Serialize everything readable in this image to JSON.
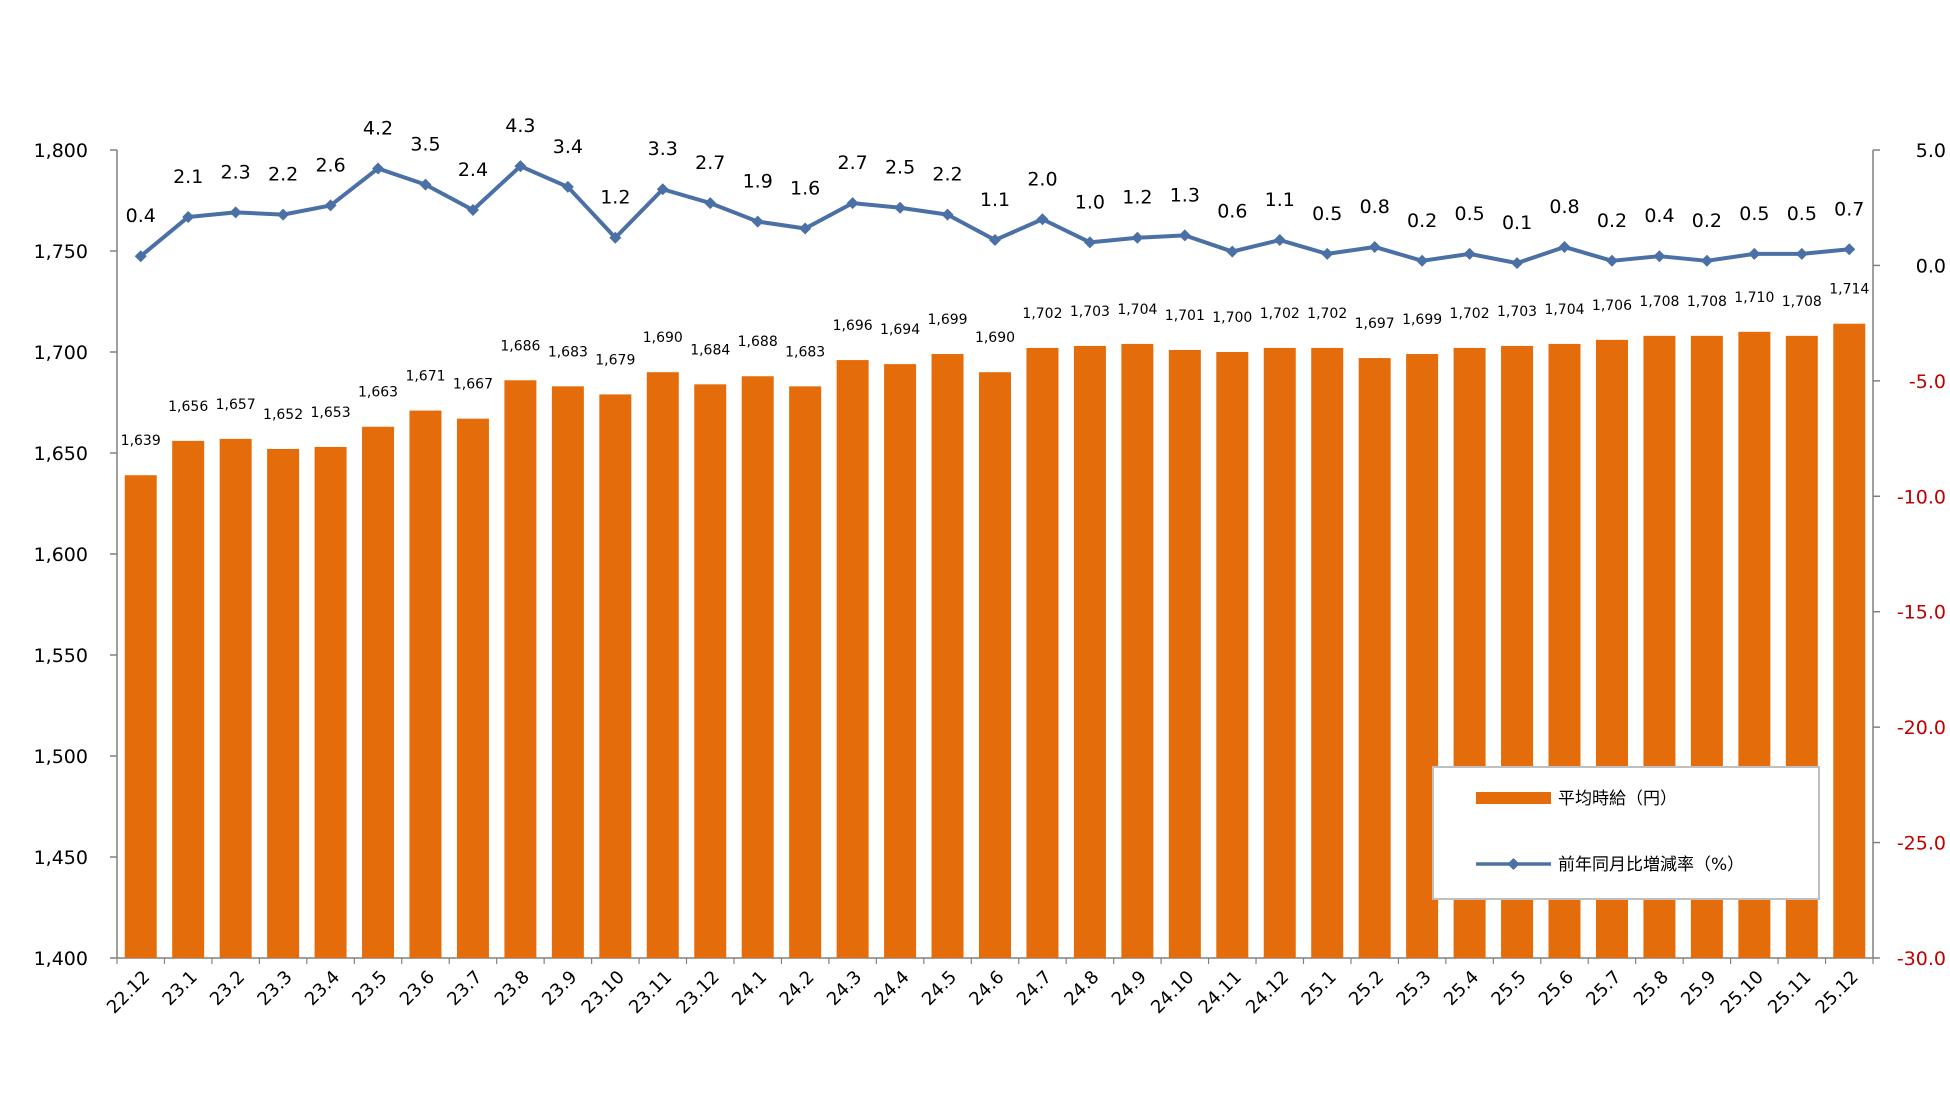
{
  "colors": {
    "bar": "#E46C0A",
    "line": "#4A70A6",
    "axis": "#808080",
    "negative_tick": "#C00000",
    "legend_border": "#BFBFBF"
  },
  "legend": {
    "bar_label": "平均時給（円）",
    "line_label": "前年同月比増減率（%）",
    "placement": "bottom-right"
  },
  "chart_data": {
    "type": "bar",
    "title": "",
    "xlabel": "",
    "ylabel": "",
    "ylim": [
      1400,
      1800
    ],
    "y2lim": [
      -30,
      5
    ],
    "y_ticks": [
      "1,400",
      "1,450",
      "1,500",
      "1,550",
      "1,600",
      "1,650",
      "1,700",
      "1,750",
      "1,800"
    ],
    "y2_ticks": [
      "-30.0",
      "-25.0",
      "-20.0",
      "-15.0",
      "-10.0",
      "-5.0",
      "0.0",
      "5.0"
    ],
    "grid": false,
    "categories": [
      "22.12",
      "23.1",
      "23.2",
      "23.3",
      "23.4",
      "23.5",
      "23.6",
      "23.7",
      "23.8",
      "23.9",
      "23.10",
      "23.11",
      "23.12",
      "24.1",
      "24.2",
      "24.3",
      "24.4",
      "24.5",
      "24.6",
      "24.7",
      "24.8",
      "24.9",
      "24.10",
      "24.11",
      "24.12",
      "25.1",
      "25.2",
      "25.3",
      "25.4",
      "25.5",
      "25.6",
      "25.7",
      "25.8",
      "25.9",
      "25.10",
      "25.11",
      "25.12"
    ],
    "series": [
      {
        "name": "平均時給（円）",
        "type": "bar",
        "axis": "left",
        "values": [
          1639,
          1656,
          1657,
          1652,
          1653,
          1663,
          1671,
          1667,
          1686,
          1683,
          1679,
          1690,
          1684,
          1688,
          1683,
          1696,
          1694,
          1699,
          1690,
          1702,
          1703,
          1704,
          1701,
          1700,
          1702,
          1702,
          1697,
          1699,
          1702,
          1703,
          1704,
          1706,
          1708,
          1708,
          1710,
          1708,
          1714
        ],
        "labels": [
          "1,639",
          "1,656",
          "1,657",
          "1,652",
          "1,653",
          "1,663",
          "1,671",
          "1,667",
          "1,686",
          "1,683",
          "1,679",
          "1,690",
          "1,684",
          "1,688",
          "1,683",
          "1,696",
          "1,694",
          "1,699",
          "1,690",
          "1,702",
          "1,703",
          "1,704",
          "1,701",
          "1,700",
          "1,702",
          "1,702",
          "1,697",
          "1,699",
          "1,702",
          "1,703",
          "1,704",
          "1,706",
          "1,708",
          "1,708",
          "1,710",
          "1,708",
          "1,714"
        ]
      },
      {
        "name": "前年同月比増減率（%）",
        "type": "line",
        "axis": "right",
        "values": [
          0.4,
          2.1,
          2.3,
          2.2,
          2.6,
          4.2,
          3.5,
          2.4,
          4.3,
          3.4,
          1.2,
          3.3,
          2.7,
          1.9,
          1.6,
          2.7,
          2.5,
          2.2,
          1.1,
          2.0,
          1.0,
          1.2,
          1.3,
          0.6,
          1.1,
          0.5,
          0.8,
          0.2,
          0.5,
          0.1,
          0.8,
          0.2,
          0.4,
          0.2,
          0.5,
          0.5,
          0.7
        ],
        "labels": [
          "0.4",
          "2.1",
          "2.3",
          "2.2",
          "2.6",
          "4.2",
          "3.5",
          "2.4",
          "4.3",
          "3.4",
          "1.2",
          "3.3",
          "2.7",
          "1.9",
          "1.6",
          "2.7",
          "2.5",
          "2.2",
          "1.1",
          "2.0",
          "1.0",
          "1.2",
          "1.3",
          "0.6",
          "1.1",
          "0.5",
          "0.8",
          "0.2",
          "0.5",
          "0.1",
          "0.8",
          "0.2",
          "0.4",
          "0.2",
          "0.5",
          "0.5",
          "0.7"
        ]
      }
    ]
  }
}
